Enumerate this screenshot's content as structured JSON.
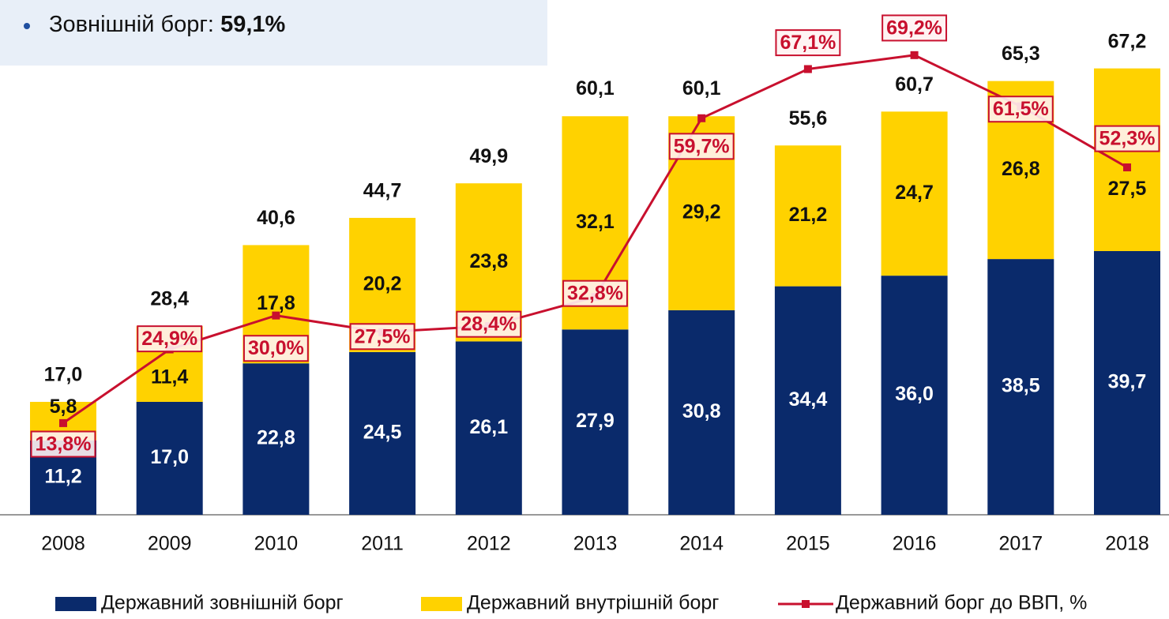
{
  "chart_data": {
    "type": "bar",
    "annotation": {
      "label": "Зовнішній борг:",
      "value": "59,1%"
    },
    "categories": [
      "2008",
      "2009",
      "2010",
      "2011",
      "2012",
      "2013",
      "2014",
      "2015",
      "2016",
      "2017",
      "2018"
    ],
    "stacked": true,
    "ylim": [
      0,
      77.5
    ],
    "y2lim": [
      0,
      77.5
    ],
    "series": [
      {
        "name": "Державний зовнішній борг",
        "color": "#0a2a6b",
        "values": [
          11.2,
          17.0,
          22.8,
          24.5,
          26.1,
          27.9,
          30.8,
          34.4,
          36.0,
          38.5,
          39.7
        ],
        "value_labels": [
          "11,2",
          "17,0",
          "22,8",
          "24,5",
          "26,1",
          "27,9",
          "30,8",
          "34,4",
          "36,0",
          "38,5",
          "39,7"
        ]
      },
      {
        "name": "Державний внутрішній борг",
        "color": "#ffd200",
        "values": [
          5.8,
          11.4,
          17.8,
          20.2,
          23.8,
          32.1,
          29.2,
          21.2,
          24.7,
          26.8,
          27.5
        ],
        "value_labels": [
          "5,8",
          "11,4",
          "17,8",
          "20,2",
          "23,8",
          "32,1",
          "29,2",
          "21,2",
          "24,7",
          "26,8",
          "27,5"
        ]
      },
      {
        "name": "Державний борг до ВВП, %",
        "color": "#c8102e",
        "type": "line",
        "axis": "y2",
        "values": [
          13.8,
          24.9,
          30.0,
          27.5,
          28.4,
          32.8,
          59.7,
          67.1,
          69.2,
          61.5,
          52.3
        ],
        "value_labels": [
          "13,8%",
          "24,9%",
          "30,0%",
          "27,5%",
          "28,4%",
          "32,8%",
          "59,7%",
          "67,1%",
          "69,2%",
          "61,5%",
          "52,3%"
        ]
      }
    ],
    "totals": {
      "values": [
        17.0,
        28.4,
        40.6,
        44.7,
        49.9,
        60.1,
        60.1,
        55.6,
        60.7,
        65.3,
        67.2
      ],
      "value_labels": [
        "17,0",
        "28,4",
        "40,6",
        "44,7",
        "49,9",
        "60,1",
        "60,1",
        "55,6",
        "60,7",
        "65,3",
        "67,2"
      ]
    },
    "legend": "bottom"
  }
}
